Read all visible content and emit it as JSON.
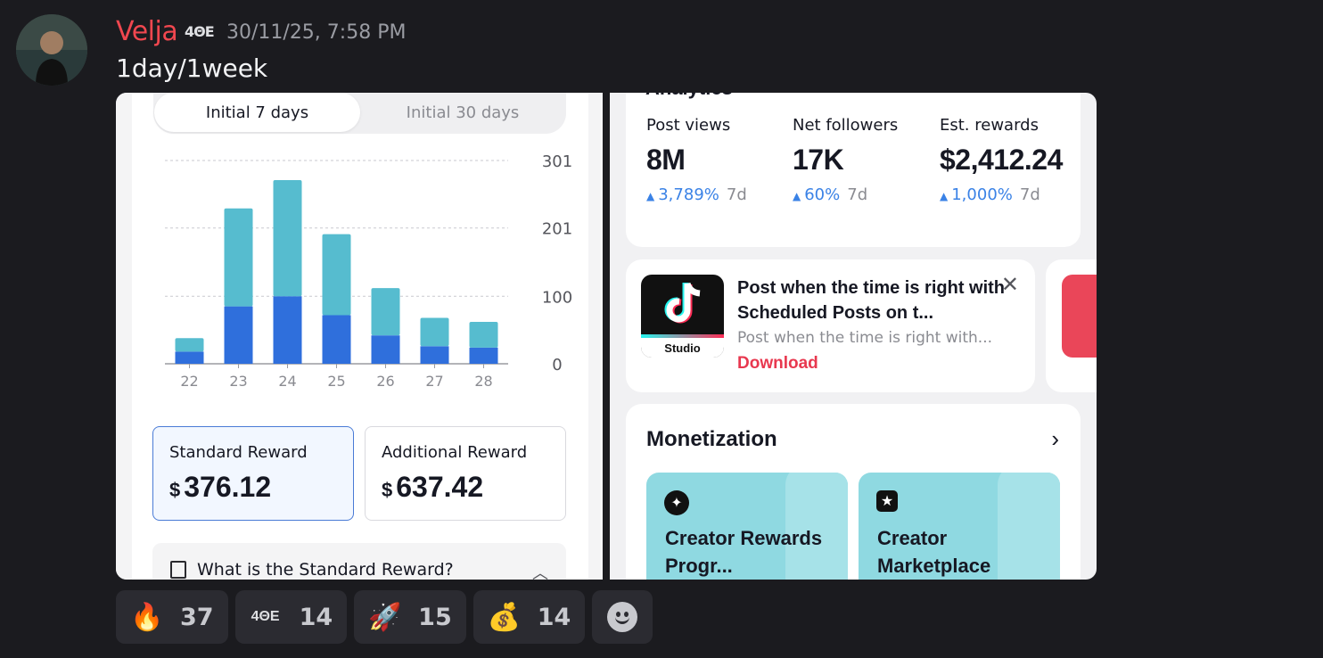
{
  "message": {
    "username": "Velja",
    "user_tag": "4ΘE",
    "timestamp": "30/11/25, 7:58 PM",
    "text": "1day/1week"
  },
  "left_screenshot": {
    "tabs": [
      "Initial 7 days",
      "Initial 30 days"
    ],
    "active_tab": "Initial 7 days",
    "reward_cards": [
      {
        "title": "Standard Reward",
        "currency": "$",
        "amount": "376.12",
        "selected": true
      },
      {
        "title": "Additional Reward",
        "currency": "$",
        "amount": "637.42",
        "selected": false
      }
    ],
    "faq_question": "What is the Standard Reward?"
  },
  "chart_data": {
    "type": "bar",
    "stacked": true,
    "categories": [
      "22",
      "23",
      "24",
      "25",
      "26",
      "27",
      "28"
    ],
    "y_ticks": [
      "301",
      "201",
      "100",
      "0"
    ],
    "ylim": [
      0,
      301
    ],
    "series": [
      {
        "color": "#2f6fdc",
        "values": [
          18,
          85,
          100,
          72,
          42,
          26,
          24
        ]
      },
      {
        "color": "#56bccf",
        "values": [
          20,
          145,
          172,
          120,
          70,
          42,
          38
        ]
      }
    ],
    "grid": true,
    "y_axis_position": "right"
  },
  "right_screenshot": {
    "analytics_title": "Analytics",
    "metrics": [
      {
        "label": "Post views",
        "value": "8M",
        "change": "3,789%",
        "period": "7d"
      },
      {
        "label": "Net followers",
        "value": "17K",
        "change": "60%",
        "period": "7d"
      },
      {
        "label": "Est. rewards",
        "value": "$2,412.24",
        "change": "1,000%",
        "period": "7d"
      }
    ],
    "promo": {
      "logo_text": "Studio",
      "title": "Post when the time is right with Scheduled Posts on t...",
      "subtitle": "Post when the time is right with...",
      "link": "Download"
    },
    "monetization": {
      "title": "Monetization",
      "tiles": [
        {
          "label": "Creator Rewards Progr...",
          "icon": "sparkle-icon"
        },
        {
          "label": "Creator Marketplace",
          "icon": "shopping-bag-icon"
        }
      ]
    }
  },
  "reactions": [
    {
      "emoji": "🔥",
      "count": "37"
    },
    {
      "emoji": "4ΘE",
      "count": "14"
    },
    {
      "emoji": "🚀",
      "count": "15"
    },
    {
      "emoji": "💰",
      "count": "14"
    }
  ],
  "colors": {
    "background": "#1b1b1f",
    "username": "#f0474f",
    "accent_blue": "#3a82e6",
    "download_red": "#e8384f"
  }
}
